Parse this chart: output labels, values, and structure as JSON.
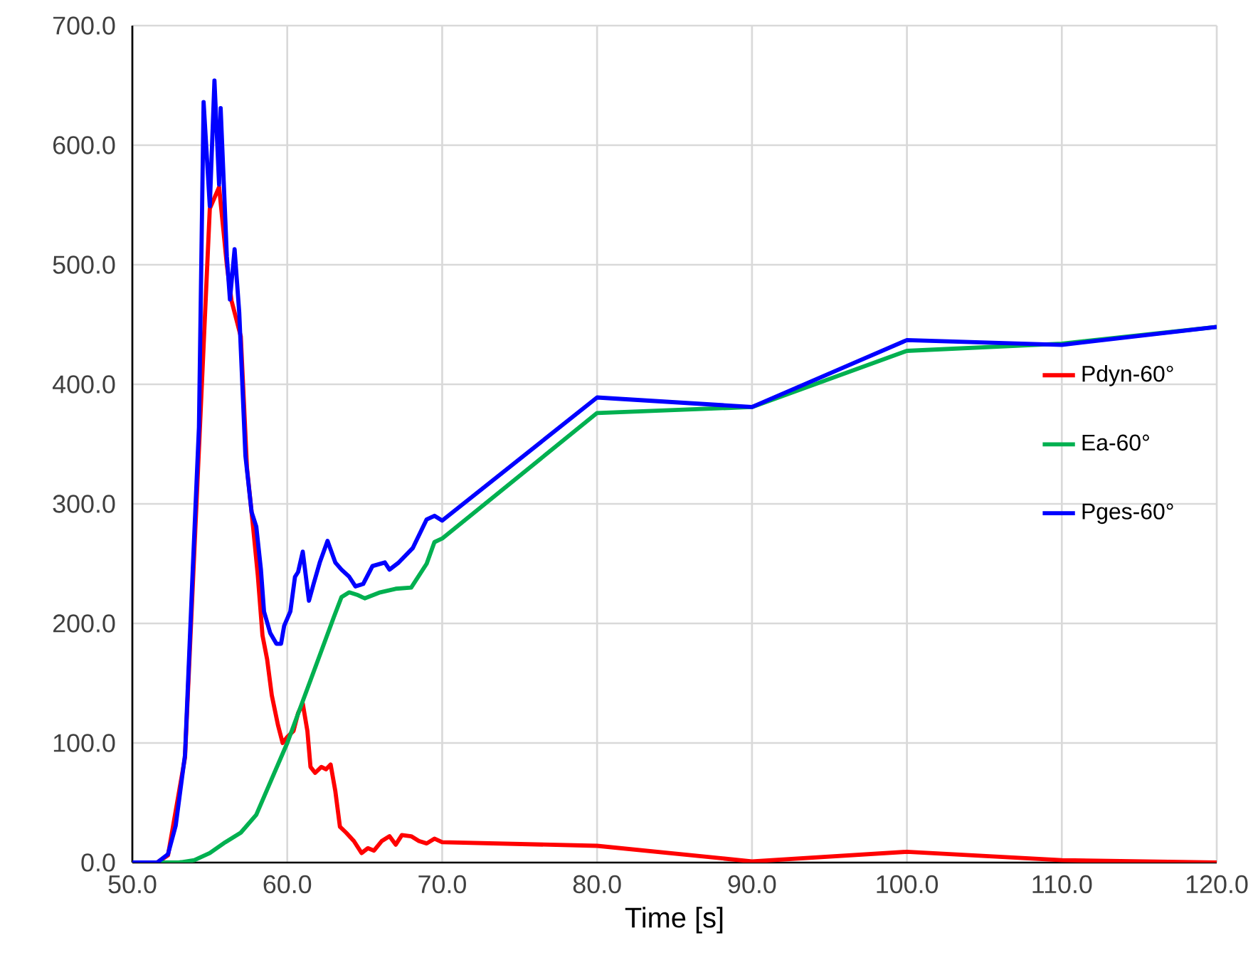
{
  "chart_data": {
    "type": "line",
    "xlabel": "Time [s]",
    "xlim": [
      50,
      120
    ],
    "ylim": [
      0,
      700
    ],
    "xticks": [
      {
        "value": 50,
        "label": "50.0"
      },
      {
        "value": 60,
        "label": "60.0"
      },
      {
        "value": 70,
        "label": "70.0"
      },
      {
        "value": 80,
        "label": "80.0"
      },
      {
        "value": 90,
        "label": "90.0"
      },
      {
        "value": 100,
        "label": "100.0"
      },
      {
        "value": 110,
        "label": "110.0"
      },
      {
        "value": 120,
        "label": "120.0"
      }
    ],
    "yticks": [
      {
        "value": 0,
        "label": "0.0"
      },
      {
        "value": 100,
        "label": "100.0"
      },
      {
        "value": 200,
        "label": "200.0"
      },
      {
        "value": 300,
        "label": "300.0"
      },
      {
        "value": 400,
        "label": "400.0"
      },
      {
        "value": 500,
        "label": "500.0"
      },
      {
        "value": 600,
        "label": "600.0"
      },
      {
        "value": 700,
        "label": "700.0"
      }
    ],
    "grid": true,
    "legend": "right",
    "marker": "none",
    "line_style": "solid",
    "series": [
      {
        "name": "Pdyn-60°",
        "color": "#ff0000",
        "x": [
          50,
          51.6,
          52.3,
          52.8,
          53.4,
          53.9,
          54.3,
          54.6,
          55.0,
          55.3,
          55.6,
          55.7,
          56.1,
          56.4,
          56.7,
          57.0,
          57.4,
          57.8,
          58.1,
          58.4,
          58.7,
          59.0,
          59.4,
          59.7,
          60.0,
          60.4,
          60.7,
          61.0,
          61.3,
          61.5,
          61.8,
          62.2,
          62.5,
          62.8,
          63.1,
          63.4,
          63.8,
          64.3,
          64.8,
          65.2,
          65.6,
          66.1,
          66.6,
          67.0,
          67.4,
          68.0,
          68.5,
          69.0,
          69.5,
          70.0,
          80,
          90,
          100,
          110,
          120
        ],
        "values": [
          0,
          0,
          6,
          null,
          88,
          null,
          null,
          null,
          547,
          null,
          565,
          null,
          500,
          470,
          455,
          440,
          330,
          280,
          240,
          190,
          170,
          140,
          115,
          100,
          105,
          110,
          125,
          133,
          110,
          80,
          75,
          80,
          78,
          82,
          60,
          30,
          25,
          18,
          8,
          12,
          10,
          18,
          22,
          15,
          23,
          22,
          18,
          16,
          20,
          17,
          14,
          1,
          9,
          2,
          0
        ]
      },
      {
        "name": "Ea-60°",
        "color": "#00b050",
        "x": [
          50,
          53,
          54,
          55,
          56,
          57,
          58,
          59,
          60,
          61,
          62,
          63,
          63.5,
          64.0,
          64.5,
          65,
          66,
          67,
          68,
          69,
          69.5,
          70,
          80,
          90,
          100,
          110,
          120
        ],
        "values": [
          0,
          0,
          2,
          8,
          17,
          25,
          40,
          70,
          100,
          135,
          170,
          205,
          222,
          226,
          224,
          221,
          226,
          229,
          230,
          250,
          268,
          271,
          376,
          381,
          428,
          434,
          448
        ]
      },
      {
        "name": "Pges-60°",
        "color": "#0000ff",
        "x": [
          50,
          51.6,
          52.3,
          52.8,
          53.4,
          53.9,
          54.3,
          54.6,
          55.0,
          55.3,
          55.6,
          55.7,
          56.1,
          56.3,
          56.6,
          56.9,
          57.3,
          57.7,
          58.0,
          58.3,
          58.5,
          58.9,
          59.3,
          59.6,
          59.8,
          60.2,
          60.5,
          60.7,
          61.0,
          61.4,
          61.7,
          62.1,
          62.6,
          63.1,
          63.5,
          64.0,
          64.4,
          64.9,
          65.5,
          66.3,
          66.6,
          67.2,
          68.1,
          69.0,
          69.5,
          70.0,
          80,
          90,
          100,
          110,
          120
        ],
        "values": [
          0,
          0,
          7,
          31,
          90,
          245,
          364,
          636,
          549,
          654,
          567,
          631,
          507,
          471,
          513,
          460,
          340,
          293,
          281,
          245,
          210,
          192,
          183,
          183,
          198,
          210,
          239,
          243,
          260,
          219,
          233,
          251,
          269,
          251,
          245,
          239,
          231,
          233,
          248,
          251,
          245,
          251,
          263,
          287,
          290,
          286,
          389,
          381,
          437,
          433,
          448
        ]
      }
    ]
  }
}
